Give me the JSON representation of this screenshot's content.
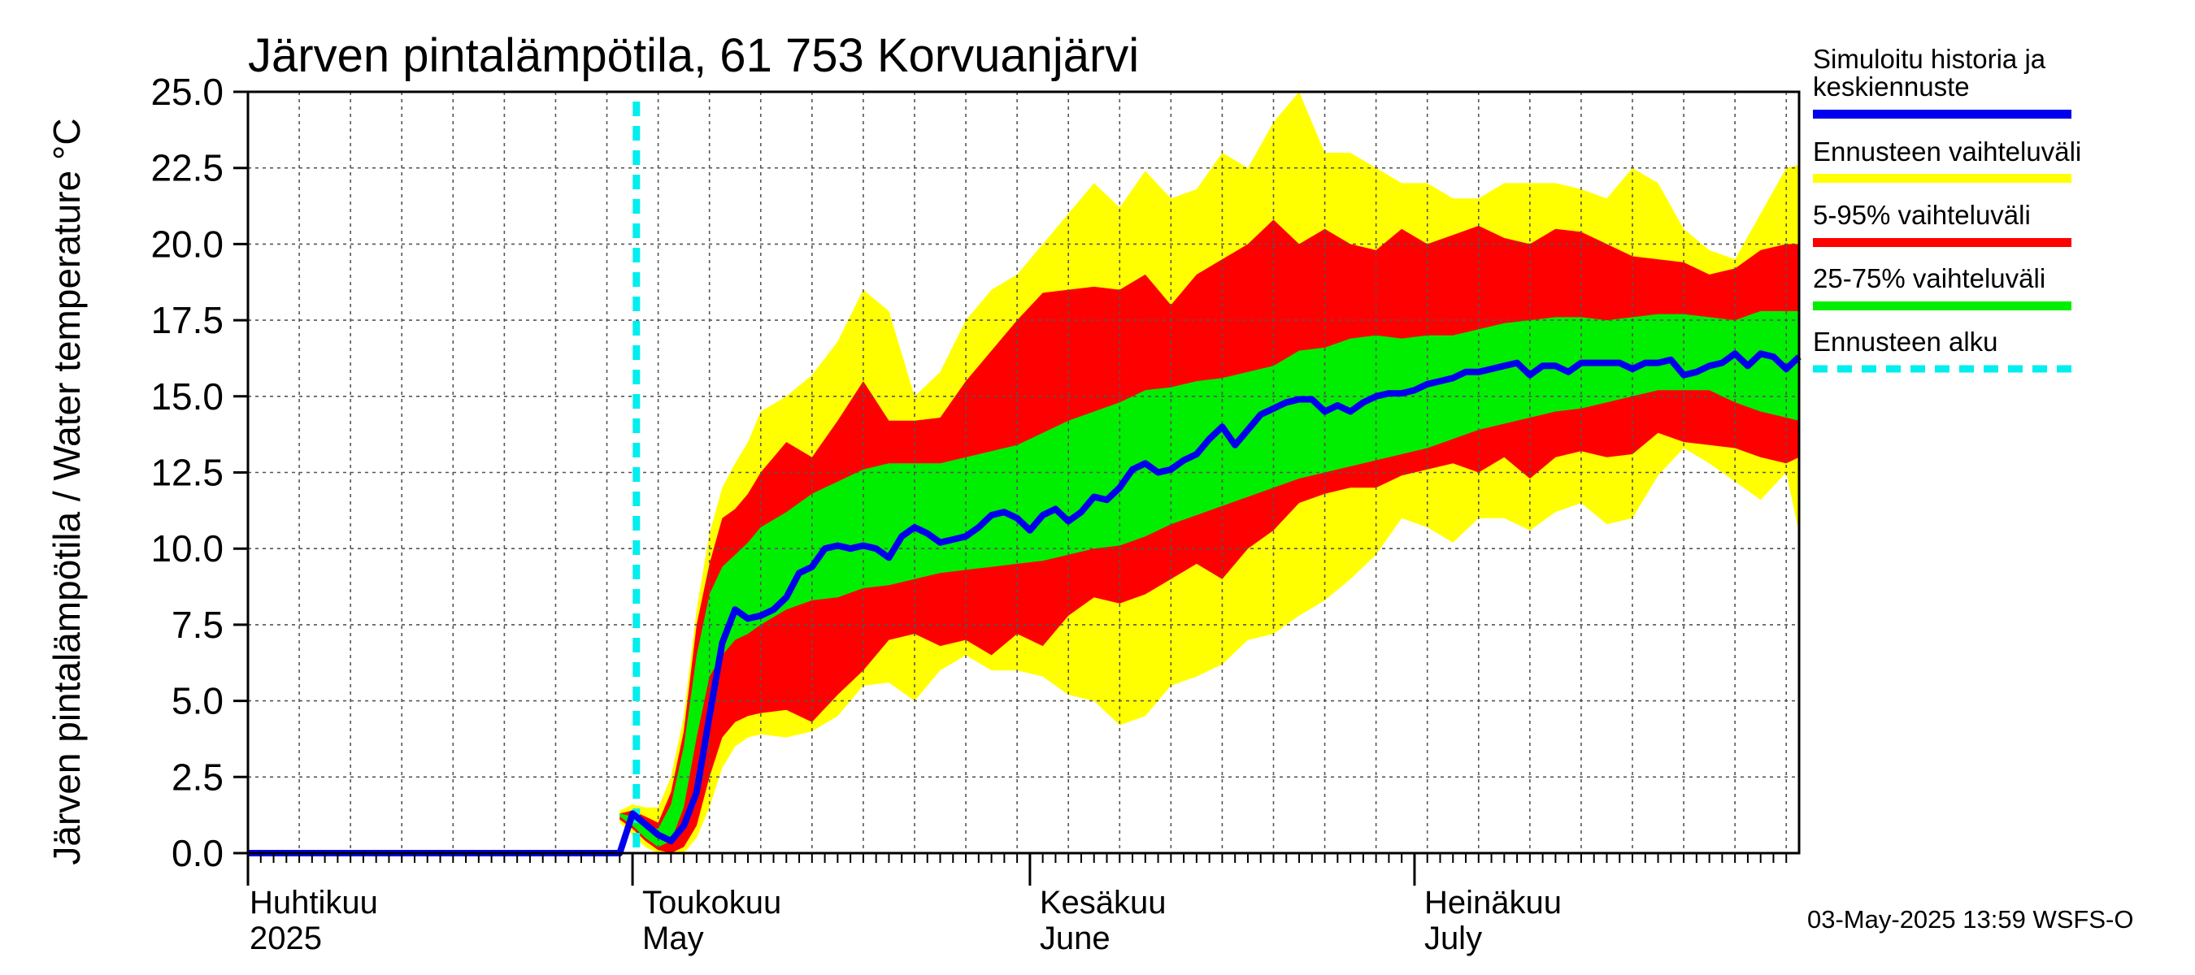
{
  "chart_data": {
    "type": "area",
    "title": "Järven pintalämpötila, 61 753 Korvuanjärvi",
    "ylabel": "Järven pintalämpötila / Water temperature °C",
    "ylim": [
      0,
      25
    ],
    "yticks": [
      "0.0",
      "2.5",
      "5.0",
      "7.5",
      "10.0",
      "12.5",
      "15.0",
      "17.5",
      "20.0",
      "22.5",
      "25.0"
    ],
    "x_range_days": [
      0,
      121
    ],
    "x_day_origin": "2025-04-01",
    "grid": true,
    "forecast_start_day": 30.3,
    "month_labels": [
      {
        "fi": "Huhtikuu",
        "en": "2025",
        "day": 0
      },
      {
        "fi": "Toukokuu",
        "en": "May",
        "day": 30
      },
      {
        "fi": "Kesäkuu",
        "en": "June",
        "day": 61
      },
      {
        "fi": "Heinäkuu",
        "en": "July",
        "day": 91
      }
    ],
    "bands_x": [
      29,
      30,
      31,
      32,
      33,
      34,
      35,
      36,
      37,
      38,
      39,
      40,
      42,
      44,
      46,
      48,
      50,
      52,
      54,
      56,
      58,
      60,
      62,
      64,
      66,
      68,
      70,
      72,
      74,
      76,
      78,
      80,
      82,
      84,
      86,
      88,
      90,
      92,
      94,
      96,
      98,
      100,
      102,
      104,
      106,
      108,
      110,
      112,
      114,
      116,
      118,
      120,
      121
    ],
    "series": [
      {
        "name": "Ennusteen vaihteluväli",
        "color": "#ffff00",
        "upper": [
          1.4,
          1.6,
          1.5,
          1.5,
          2.5,
          4.5,
          8.0,
          10.5,
          12.0,
          12.8,
          13.5,
          14.5,
          15.0,
          15.7,
          16.8,
          18.5,
          17.8,
          15.0,
          15.8,
          17.5,
          18.5,
          19.0,
          20.0,
          21.0,
          22.0,
          21.2,
          22.4,
          21.5,
          21.8,
          23.0,
          22.5,
          24.0,
          25.0,
          23.0,
          23.0,
          22.5,
          22.0,
          22.0,
          21.5,
          21.5,
          22.0,
          22.0,
          22.0,
          21.8,
          21.5,
          22.5,
          22.0,
          20.5,
          19.8,
          19.5,
          21.0,
          22.5,
          22.6
        ],
        "lower": [
          1.0,
          0.6,
          0.2,
          0.0,
          0.0,
          0.0,
          0.5,
          1.5,
          2.8,
          3.5,
          3.8,
          3.9,
          3.8,
          4.0,
          4.5,
          5.5,
          5.6,
          5.0,
          6.0,
          6.5,
          6.0,
          6.0,
          5.8,
          5.2,
          5.0,
          4.2,
          4.5,
          5.5,
          5.8,
          6.2,
          7.0,
          7.2,
          7.8,
          8.3,
          9.0,
          9.8,
          11.0,
          10.7,
          10.2,
          11.0,
          11.0,
          10.6,
          11.2,
          11.5,
          10.8,
          11.0,
          12.4,
          13.3,
          12.8,
          12.2,
          11.6,
          12.5,
          10.5
        ]
      },
      {
        "name": "5-95% vaihteluväli",
        "color": "#ff0000",
        "upper": [
          1.3,
          1.4,
          1.2,
          1.0,
          2.0,
          4.0,
          7.5,
          9.5,
          11.0,
          11.3,
          11.8,
          12.5,
          13.5,
          13.0,
          14.2,
          15.5,
          14.2,
          14.2,
          14.3,
          15.5,
          16.5,
          17.5,
          18.4,
          18.5,
          18.6,
          18.5,
          19.0,
          18.0,
          19.0,
          19.5,
          20.0,
          20.8,
          20.0,
          20.5,
          20.0,
          19.8,
          20.5,
          20.0,
          20.3,
          20.6,
          20.2,
          20.0,
          20.5,
          20.4,
          20.0,
          19.6,
          19.5,
          19.4,
          19.0,
          19.2,
          19.8,
          20.0,
          20.0
        ],
        "lower": [
          1.1,
          0.8,
          0.4,
          0.1,
          0.0,
          0.2,
          0.9,
          2.5,
          3.8,
          4.3,
          4.5,
          4.6,
          4.7,
          4.3,
          5.2,
          6.0,
          7.0,
          7.2,
          6.8,
          7.0,
          6.5,
          7.2,
          6.8,
          7.8,
          8.4,
          8.2,
          8.5,
          9.0,
          9.5,
          9.0,
          10.0,
          10.6,
          11.5,
          11.8,
          12.0,
          12.0,
          12.4,
          12.6,
          12.8,
          12.5,
          13.0,
          12.3,
          13.0,
          13.2,
          13.0,
          13.1,
          13.8,
          13.5,
          13.4,
          13.3,
          13.0,
          12.8,
          13.0
        ]
      },
      {
        "name": "25-75% vaihteluväli",
        "color": "#00ee00",
        "upper": [
          1.3,
          1.2,
          0.9,
          0.8,
          1.6,
          3.5,
          6.5,
          8.5,
          9.4,
          9.8,
          10.2,
          10.7,
          11.2,
          11.8,
          12.2,
          12.6,
          12.8,
          12.8,
          12.8,
          13.0,
          13.2,
          13.4,
          13.8,
          14.2,
          14.5,
          14.8,
          15.2,
          15.3,
          15.5,
          15.6,
          15.8,
          16.0,
          16.5,
          16.6,
          16.9,
          17.0,
          16.9,
          17.0,
          17.0,
          17.2,
          17.4,
          17.5,
          17.6,
          17.6,
          17.5,
          17.6,
          17.7,
          17.7,
          17.6,
          17.5,
          17.8,
          17.8,
          17.8
        ],
        "lower": [
          1.2,
          0.9,
          0.5,
          0.2,
          0.4,
          1.5,
          3.8,
          5.8,
          6.5,
          7.0,
          7.2,
          7.5,
          8.0,
          8.3,
          8.4,
          8.7,
          8.8,
          9.0,
          9.2,
          9.3,
          9.4,
          9.5,
          9.6,
          9.8,
          10.0,
          10.1,
          10.4,
          10.8,
          11.1,
          11.4,
          11.7,
          12.0,
          12.3,
          12.5,
          12.7,
          12.9,
          13.1,
          13.3,
          13.6,
          13.9,
          14.1,
          14.3,
          14.5,
          14.6,
          14.8,
          15.0,
          15.2,
          15.2,
          15.2,
          14.8,
          14.5,
          14.3,
          14.2
        ]
      }
    ],
    "median": {
      "name": "Simuloitu historia ja keskiennuste",
      "color": "#0000ee",
      "x": [
        0,
        29,
        30,
        32,
        33,
        34,
        35,
        36,
        37,
        38,
        39,
        40,
        41,
        42,
        43,
        44,
        45,
        46,
        47,
        48,
        49,
        50,
        51,
        52,
        53,
        54,
        55,
        56,
        57,
        58,
        59,
        60,
        61,
        62,
        63,
        64,
        65,
        66,
        67,
        68,
        69,
        70,
        71,
        72,
        73,
        74,
        75,
        76,
        77,
        78,
        79,
        80,
        81,
        82,
        83,
        84,
        85,
        86,
        87,
        88,
        89,
        90,
        91,
        92,
        93,
        94,
        95,
        96,
        97,
        98,
        99,
        100,
        101,
        102,
        103,
        104,
        105,
        106,
        107,
        108,
        109,
        110,
        111,
        112,
        113,
        114,
        115,
        116,
        117,
        118,
        119,
        120,
        121
      ],
      "y": [
        0.0,
        0.0,
        1.3,
        0.6,
        0.4,
        0.9,
        2.0,
        4.5,
        6.9,
        8.0,
        7.7,
        7.8,
        8.0,
        8.4,
        9.2,
        9.4,
        10.0,
        10.1,
        10.0,
        10.1,
        10.0,
        9.7,
        10.4,
        10.7,
        10.5,
        10.2,
        10.3,
        10.4,
        10.7,
        11.1,
        11.2,
        11.0,
        10.6,
        11.1,
        11.3,
        10.9,
        11.2,
        11.7,
        11.6,
        12.0,
        12.6,
        12.8,
        12.5,
        12.6,
        12.9,
        13.1,
        13.6,
        14.0,
        13.4,
        13.9,
        14.4,
        14.6,
        14.8,
        14.9,
        14.9,
        14.5,
        14.7,
        14.5,
        14.8,
        15.0,
        15.1,
        15.1,
        15.2,
        15.4,
        15.5,
        15.6,
        15.8,
        15.8,
        15.9,
        16.0,
        16.1,
        15.7,
        16.0,
        16.0,
        15.8,
        16.1,
        16.1,
        16.1,
        16.1,
        15.9,
        16.1,
        16.1,
        16.2,
        15.7,
        15.8,
        16.0,
        16.1,
        16.4,
        16.0,
        16.4,
        16.3,
        15.9,
        16.3
      ]
    },
    "legend": [
      {
        "label": "Simuloitu historia ja keskiennuste",
        "color": "#0000ee",
        "style": "solid"
      },
      {
        "label": "Ennusteen vaihteluväli",
        "color": "#ffff00",
        "style": "solid"
      },
      {
        "label": "5-95% vaihteluväli",
        "color": "#ff0000",
        "style": "solid"
      },
      {
        "label": "25-75% vaihteluväli",
        "color": "#00ee00",
        "style": "solid"
      },
      {
        "label": "Ennusteen alku",
        "color": "#00eeee",
        "style": "dashed"
      }
    ],
    "legend_lines": {
      "l0a": "Simuloitu historia ja",
      "l0b": "keskiennuste",
      "l1": "Ennusteen vaihteluväli",
      "l2": "5-95% vaihteluväli",
      "l3": "25-75% vaihteluväli",
      "l4": "Ennusteen alku"
    },
    "legend_position": "right",
    "footer": "03-May-2025 13:59 WSFS-O"
  }
}
